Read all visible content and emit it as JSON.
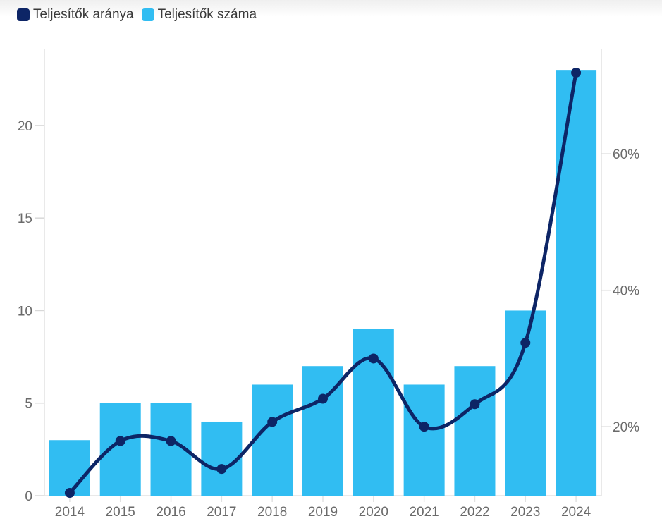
{
  "legend": {
    "items": [
      {
        "label": "Teljesítők aránya",
        "color": "#0d2566",
        "series_type": "line"
      },
      {
        "label": "Teljesítők száma",
        "color": "#31bdf2",
        "series_type": "bar"
      }
    ]
  },
  "chart_data": {
    "type": "bar",
    "subtype": "combo-bar-line",
    "title": "",
    "categories": [
      "2014",
      "2015",
      "2016",
      "2017",
      "2018",
      "2019",
      "2020",
      "2021",
      "2022",
      "2023",
      "2024"
    ],
    "series": [
      {
        "name": "Teljesítők száma",
        "type": "bar",
        "axis": "left",
        "color": "#31bdf2",
        "values": [
          3,
          5,
          5,
          4,
          6,
          7,
          9,
          6,
          7,
          10,
          23
        ]
      },
      {
        "name": "Teljesítők aránya",
        "type": "line",
        "axis": "right",
        "color": "#0d2566",
        "values": [
          10.3,
          17.9,
          17.9,
          13.8,
          20.7,
          24.1,
          30.0,
          20.0,
          23.3,
          32.3,
          71.9
        ]
      }
    ],
    "left_axis": {
      "ticks": [
        0,
        5,
        10,
        15,
        20
      ],
      "min": 0,
      "max": 24.11,
      "label": ""
    },
    "right_axis": {
      "ticks": [
        20,
        40,
        60
      ],
      "tick_suffix": "%",
      "min": 9.89,
      "max": 75.32,
      "label": ""
    },
    "xlabel": "",
    "ylabel": "",
    "grid": false,
    "legend_position": "top-left"
  },
  "style": {
    "axis_line_color": "#e2e2e2",
    "tick_color": "#d8d8d8",
    "axis_text_color": "#6a6a6a"
  }
}
